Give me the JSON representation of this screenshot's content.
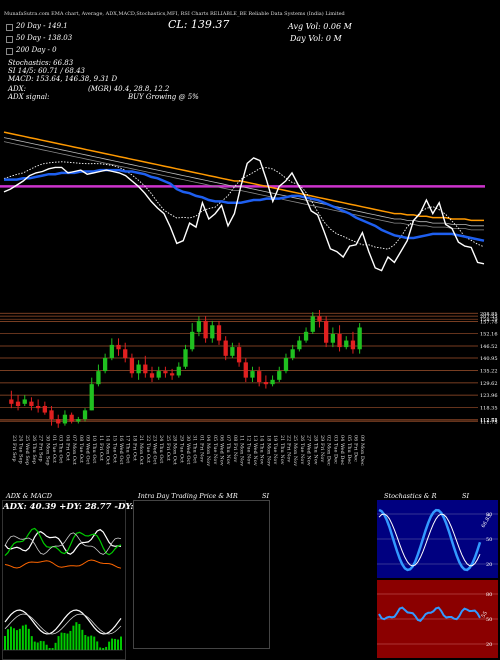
{
  "header": {
    "top_line": "MunafaSutra.com   EMA chart, Average, ADX,MACD,Stochastics,MFI, RSI      Charts RELIABLE_BE       Reliable Data Systems (India) Limited",
    "ema20": "20 Day - 149.1",
    "ema50": "50 Day - 138.03",
    "ema200": "200 Day - 0",
    "close": "CL: 139.37",
    "avg_vol": "Avg Vol: 0.06   M",
    "day_vol": "Day Vol: 0   M",
    "stoch": "Stochastics: 66.83",
    "si": "SI 14/5: 60.71 / 68.43",
    "macd": "MACD: 153.64, 146.38, 9.31 D",
    "adx": "ADX:",
    "adx_signal": "ADX  signal:",
    "mgr": "(MGR) 40.4, 28.8, 12.2",
    "buy_signal": "BUY Growing @ 5%"
  },
  "colors": {
    "price": "#ffffff",
    "ema20": "#1e5ff0",
    "ema50": "#ff9900",
    "ema200": "#cc33cc",
    "up": "#20c020",
    "down": "#e02020",
    "grid": "#a0522d",
    "stoch_bg": "#000080",
    "stoch_low_bg": "#8b0000"
  },
  "chart_data": [
    {
      "type": "line",
      "title": "EMA chart",
      "series_names": [
        "Price",
        "20 Day EMA",
        "50 Day EMA",
        "200 Day EMA"
      ],
      "price": [
        196,
        198,
        201,
        204,
        208,
        210,
        211,
        213,
        214,
        214,
        210,
        211,
        212,
        209,
        210,
        211,
        212,
        211,
        210,
        208,
        204,
        200,
        195,
        189,
        184,
        180,
        170,
        158,
        160,
        173,
        170,
        188,
        176,
        180,
        186,
        171,
        180,
        200,
        217,
        221,
        219,
        205,
        189,
        200,
        204,
        210,
        201,
        193,
        182,
        179,
        167,
        154,
        152,
        148,
        156,
        157,
        166,
        152,
        140,
        138,
        148,
        144,
        152,
        160,
        175,
        180,
        190,
        180,
        188,
        172,
        169,
        159,
        156,
        155,
        144,
        143
      ],
      "ema20": [
        205,
        205,
        205,
        206,
        206,
        207,
        208,
        209,
        209,
        210,
        210,
        210,
        211,
        211,
        211,
        212,
        212,
        212,
        212,
        211,
        211,
        210,
        209,
        207,
        206,
        204,
        202,
        198,
        196,
        195,
        193,
        192,
        190,
        189,
        189,
        188,
        188,
        188,
        189,
        190,
        190,
        191,
        191,
        191,
        192,
        193,
        193,
        192,
        191,
        190,
        188,
        186,
        184,
        182,
        180,
        177,
        175,
        173,
        171,
        168,
        166,
        164,
        163,
        162,
        162,
        163,
        164,
        165,
        165,
        165,
        165,
        164,
        163,
        162,
        161,
        160
      ],
      "ema50": [
        240,
        239,
        238,
        237,
        236,
        235,
        234,
        233,
        232,
        231,
        230,
        229,
        228,
        227,
        226,
        225,
        224,
        223,
        222,
        221,
        220,
        219,
        218,
        217,
        216,
        215,
        214,
        213,
        212,
        211,
        210,
        209,
        208,
        207,
        206,
        205,
        204,
        204,
        203,
        202,
        201,
        200,
        199,
        198,
        197,
        196,
        195,
        194,
        193,
        192,
        191,
        190,
        189,
        188,
        187,
        186,
        185,
        184,
        183,
        182,
        181,
        180,
        180,
        179,
        179,
        178,
        178,
        177,
        177,
        177,
        176,
        176,
        176,
        175,
        175,
        175
      ],
      "ema200": 200
    },
    {
      "type": "candlestick",
      "title": "Daily price",
      "price_ticks": [
        "208.85",
        "207.55",
        "158.79",
        "157.78",
        "152.16",
        "146.52",
        "140.95",
        "135.22",
        "129.62",
        "123.96",
        "118.35",
        "112.73",
        "112.51",
        "111.75"
      ],
      "x_labels": [
        "23 Fri Sep",
        "24 Tue Sep",
        "25 Wed Sep",
        "26 Thu Sep",
        "27 Fri Sep",
        "30 Mon Sep",
        "01 Tue Oct",
        "03 Thu Oct",
        "04 Fri Oct",
        "07 Mon Oct",
        "08 Tue Oct",
        "09 Wed Oct",
        "10 Thu Oct",
        "11 Fri Oct",
        "14 Mon Oct",
        "15 Tue Oct",
        "16 Wed Oct",
        "17 Thu Oct",
        "18 Fri Oct",
        "21 Mon Oct",
        "22 Tue Oct",
        "23 Wed Oct",
        "24 Thu Oct",
        "25 Fri Oct",
        "28 Mon Oct",
        "29 Tue Oct",
        "30 Wed Oct",
        "31 Thu Oct",
        "01 Fri Nov",
        "04 Mon Nov",
        "05 Tue Nov",
        "06 Wed Nov",
        "07 Thu Nov",
        "08 Fri Nov",
        "11 Mon Nov",
        "12 Tue Nov",
        "13 Wed Nov",
        "14 Thu Nov",
        "18 Mon Nov",
        "19 Tue Nov",
        "21 Thu Nov",
        "22 Fri Nov",
        "25 Mon Nov",
        "26 Tue Nov",
        "27 Wed Nov",
        "28 Thu Nov",
        "29 Fri Nov",
        "02 Mon Dec",
        "03 Tue Dec",
        "04 Wed Dec",
        "05 Thu Dec",
        "06 Fri Dec",
        "09 Mon Dec"
      ],
      "candles": [
        {
          "o": 122,
          "c": 120,
          "h": 126,
          "l": 118
        },
        {
          "o": 121,
          "c": 119,
          "h": 124,
          "l": 117
        },
        {
          "o": 120,
          "c": 122,
          "h": 124,
          "l": 119
        },
        {
          "o": 121,
          "c": 119,
          "h": 123,
          "l": 117
        },
        {
          "o": 119,
          "c": 118,
          "h": 122,
          "l": 116
        },
        {
          "o": 119,
          "c": 116,
          "h": 121,
          "l": 115
        },
        {
          "o": 117,
          "c": 113,
          "h": 119,
          "l": 110
        },
        {
          "o": 113,
          "c": 111,
          "h": 115,
          "l": 109
        },
        {
          "o": 111,
          "c": 115,
          "h": 117,
          "l": 110
        },
        {
          "o": 115,
          "c": 112,
          "h": 116,
          "l": 111
        },
        {
          "o": 112,
          "c": 113,
          "h": 114,
          "l": 111
        },
        {
          "o": 113,
          "c": 117,
          "h": 118,
          "l": 112
        },
        {
          "o": 117,
          "c": 129,
          "h": 132,
          "l": 117
        },
        {
          "o": 129,
          "c": 135,
          "h": 138,
          "l": 128
        },
        {
          "o": 135,
          "c": 141,
          "h": 143,
          "l": 134
        },
        {
          "o": 141,
          "c": 147,
          "h": 150,
          "l": 140
        },
        {
          "o": 147,
          "c": 145,
          "h": 150,
          "l": 142
        },
        {
          "o": 145,
          "c": 141,
          "h": 148,
          "l": 139
        },
        {
          "o": 141,
          "c": 134,
          "h": 143,
          "l": 132
        },
        {
          "o": 134,
          "c": 138,
          "h": 140,
          "l": 131
        },
        {
          "o": 138,
          "c": 134,
          "h": 142,
          "l": 132
        },
        {
          "o": 134,
          "c": 132,
          "h": 137,
          "l": 130
        },
        {
          "o": 132,
          "c": 135,
          "h": 137,
          "l": 131
        },
        {
          "o": 135,
          "c": 134,
          "h": 137,
          "l": 132
        },
        {
          "o": 134,
          "c": 133,
          "h": 136,
          "l": 131
        },
        {
          "o": 133,
          "c": 137,
          "h": 139,
          "l": 132
        },
        {
          "o": 137,
          "c": 145,
          "h": 147,
          "l": 136
        },
        {
          "o": 145,
          "c": 153,
          "h": 157,
          "l": 144
        },
        {
          "o": 153,
          "c": 158,
          "h": 160,
          "l": 151
        },
        {
          "o": 158,
          "c": 150,
          "h": 160,
          "l": 148
        },
        {
          "o": 150,
          "c": 156,
          "h": 158,
          "l": 148
        },
        {
          "o": 156,
          "c": 149,
          "h": 158,
          "l": 147
        },
        {
          "o": 149,
          "c": 142,
          "h": 151,
          "l": 140
        },
        {
          "o": 142,
          "c": 146,
          "h": 148,
          "l": 141
        },
        {
          "o": 146,
          "c": 139,
          "h": 148,
          "l": 137
        },
        {
          "o": 139,
          "c": 132,
          "h": 141,
          "l": 130
        },
        {
          "o": 132,
          "c": 135,
          "h": 137,
          "l": 130
        },
        {
          "o": 135,
          "c": 130,
          "h": 137,
          "l": 128
        },
        {
          "o": 130,
          "c": 129,
          "h": 133,
          "l": 127
        },
        {
          "o": 129,
          "c": 131,
          "h": 133,
          "l": 128
        },
        {
          "o": 131,
          "c": 135,
          "h": 137,
          "l": 130
        },
        {
          "o": 135,
          "c": 141,
          "h": 143,
          "l": 134
        },
        {
          "o": 141,
          "c": 145,
          "h": 147,
          "l": 140
        },
        {
          "o": 145,
          "c": 149,
          "h": 151,
          "l": 144
        },
        {
          "o": 149,
          "c": 153,
          "h": 155,
          "l": 148
        },
        {
          "o": 153,
          "c": 160,
          "h": 162,
          "l": 152
        },
        {
          "o": 160,
          "c": 158,
          "h": 163,
          "l": 155
        },
        {
          "o": 158,
          "c": 148,
          "h": 160,
          "l": 146
        },
        {
          "o": 148,
          "c": 152,
          "h": 155,
          "l": 146
        },
        {
          "o": 152,
          "c": 146,
          "h": 156,
          "l": 144
        },
        {
          "o": 146,
          "c": 149,
          "h": 151,
          "l": 145
        },
        {
          "o": 149,
          "c": 145,
          "h": 153,
          "l": 143
        },
        {
          "o": 145,
          "c": 155,
          "h": 157,
          "l": 143
        }
      ]
    }
  ],
  "panels": {
    "adx_title": "ADX  & MACD",
    "adx_values": "ADX: 40.39  +DY: 28.77  -DY: 12.21",
    "intraday_title": "Intra  Day Trading Price  & MR",
    "si_label": "SI",
    "stoch_title": "Stochastics & R",
    "stoch_label": "SI",
    "stoch_ticks": [
      "80",
      "50",
      "20"
    ],
    "rsi_ticks": [
      "80",
      "50",
      "20"
    ],
    "stoch_value": "66.83",
    "rsi_value": "55"
  }
}
